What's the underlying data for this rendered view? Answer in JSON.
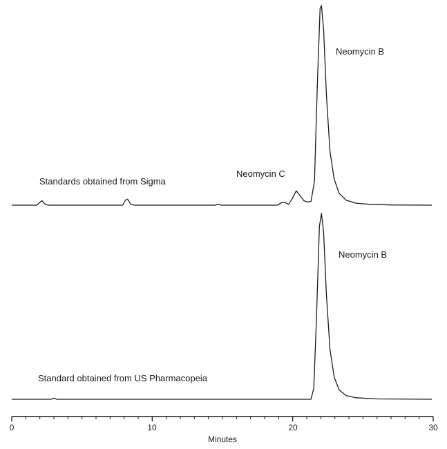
{
  "chart_data": {
    "type": "line",
    "xlabel": "Minutes",
    "xlim": [
      0,
      30
    ],
    "x_ticks": [
      "0",
      "10",
      "20",
      "30"
    ],
    "grid": false,
    "colors": {
      "trace": "#1a1a1a",
      "axis": "#1a1a1a"
    },
    "series": [
      {
        "name": "Standards obtained from Sigma",
        "points": [
          [
            0.0,
            0.0
          ],
          [
            1.8,
            0.0
          ],
          [
            2.0,
            0.015
          ],
          [
            2.15,
            0.022
          ],
          [
            2.35,
            0.006
          ],
          [
            2.6,
            0.0
          ],
          [
            7.9,
            0.0
          ],
          [
            8.1,
            0.026
          ],
          [
            8.25,
            0.03
          ],
          [
            8.45,
            0.006
          ],
          [
            8.7,
            0.0
          ],
          [
            14.5,
            0.0
          ],
          [
            14.7,
            0.005
          ],
          [
            14.9,
            0.0
          ],
          [
            18.9,
            0.0
          ],
          [
            19.2,
            0.012
          ],
          [
            19.4,
            0.015
          ],
          [
            19.7,
            0.004
          ],
          [
            19.95,
            0.03
          ],
          [
            20.25,
            0.072
          ],
          [
            20.5,
            0.05
          ],
          [
            20.8,
            0.022
          ],
          [
            21.05,
            0.016
          ],
          [
            21.3,
            0.018
          ],
          [
            21.55,
            0.12
          ],
          [
            21.75,
            0.6
          ],
          [
            21.95,
            0.985
          ],
          [
            22.05,
            1.0
          ],
          [
            22.2,
            0.88
          ],
          [
            22.4,
            0.55
          ],
          [
            22.65,
            0.27
          ],
          [
            22.95,
            0.13
          ],
          [
            23.3,
            0.06
          ],
          [
            23.8,
            0.025
          ],
          [
            24.5,
            0.01
          ],
          [
            25.5,
            0.004
          ],
          [
            27.0,
            0.001
          ],
          [
            29.9,
            0.0
          ]
        ]
      },
      {
        "name": "Standard obtained from US Pharmacopeia",
        "points": [
          [
            0.0,
            0.0
          ],
          [
            2.8,
            0.0
          ],
          [
            3.0,
            0.006
          ],
          [
            3.2,
            0.0
          ],
          [
            21.3,
            0.0
          ],
          [
            21.5,
            0.06
          ],
          [
            21.7,
            0.45
          ],
          [
            21.9,
            0.93
          ],
          [
            22.05,
            1.0
          ],
          [
            22.2,
            0.9
          ],
          [
            22.4,
            0.56
          ],
          [
            22.65,
            0.27
          ],
          [
            22.95,
            0.12
          ],
          [
            23.3,
            0.05
          ],
          [
            23.8,
            0.02
          ],
          [
            24.5,
            0.008
          ],
          [
            26.0,
            0.002
          ],
          [
            29.9,
            0.0
          ]
        ]
      }
    ],
    "annotations": [
      {
        "text": "Standards obtained from Sigma",
        "series": 0
      },
      {
        "text": "Neomycin C",
        "series": 0
      },
      {
        "text": "Neomycin B",
        "series": 0
      },
      {
        "text": "Neomycin B",
        "series": 1
      },
      {
        "text": "Standard obtained from US Pharmacopeia",
        "series": 1
      }
    ]
  }
}
